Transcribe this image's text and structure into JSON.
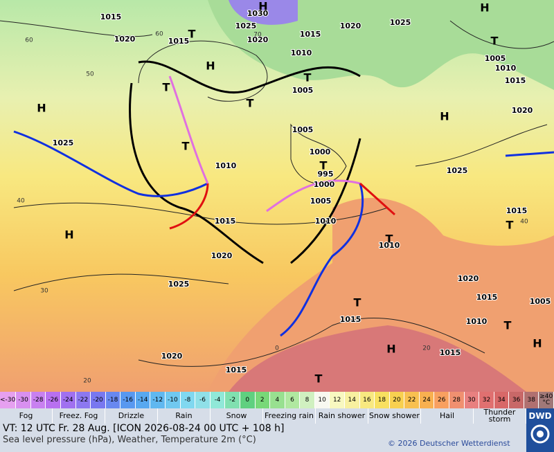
{
  "map": {
    "isobar_labels": [
      1015,
      1030,
      1025,
      1020,
      1015,
      1015,
      1020,
      1025,
      1020,
      1010,
      1005,
      1005,
      1000,
      995,
      1000,
      1005,
      1010,
      1010,
      1025,
      1015,
      1020,
      1025,
      1020,
      1015,
      1015,
      1015,
      1010,
      1010,
      1015,
      1020,
      1005,
      1015,
      1025,
      1020,
      1005,
      1010,
      1015
    ],
    "pressure_centers": [
      "H",
      "T",
      "H",
      "T",
      "T",
      "T",
      "H",
      "T",
      "T",
      "H",
      "H",
      "T",
      "T",
      "T",
      "T",
      "H",
      "H",
      "T",
      "H",
      "T"
    ],
    "grid_labels": [
      60,
      60,
      50,
      40,
      30,
      20,
      40,
      20,
      0,
      70
    ]
  },
  "legend": {
    "scale": {
      "low_label": "<-30",
      "high_label": "≥40",
      "unit": "°C",
      "low_color": "#e6a0f0",
      "high_color": "#a07878",
      "values": [
        -30,
        -28,
        -26,
        -24,
        -22,
        -20,
        -18,
        -16,
        -14,
        -12,
        -10,
        -8,
        -6,
        -4,
        -2,
        0,
        2,
        4,
        6,
        8,
        10,
        12,
        14,
        16,
        18,
        20,
        22,
        24,
        26,
        28,
        30,
        32,
        34,
        36,
        38
      ],
      "colors": [
        "#d890f0",
        "#c880f0",
        "#b870f0",
        "#a070f0",
        "#8c78f0",
        "#7878f0",
        "#6888f0",
        "#5898f0",
        "#58a8f0",
        "#60b8f0",
        "#70c8f0",
        "#80d8f0",
        "#90e0e8",
        "#90e8d8",
        "#80e0b0",
        "#60d080",
        "#78d878",
        "#98e090",
        "#b0e8a0",
        "#d0f0c0",
        "#f8f8f0",
        "#f8f8c0",
        "#f8f0a0",
        "#f8e880",
        "#f8e060",
        "#f8d050",
        "#f8c050",
        "#f8b050",
        "#f8a060",
        "#f09070",
        "#e88080",
        "#e07070",
        "#d86868",
        "#c86868",
        "#b07070"
      ]
    },
    "weather": [
      "Fog",
      "Freez. Fog",
      "Drizzle",
      "Rain",
      "Snow",
      "Freezing rain",
      "Rain shower",
      "Snow shower",
      "Hail",
      "Thunder storm"
    ]
  },
  "footer": {
    "valid_time": "VT: 12 UTC Fr.  28 Aug. [ICON 2026-08-24  00 UTC + 108 h]",
    "description": "Sea level pressure (hPa), Weather, Temperature 2m (°C)",
    "copyright": "© 2026 Deutscher Wetterdienst",
    "logo": "DWD"
  }
}
